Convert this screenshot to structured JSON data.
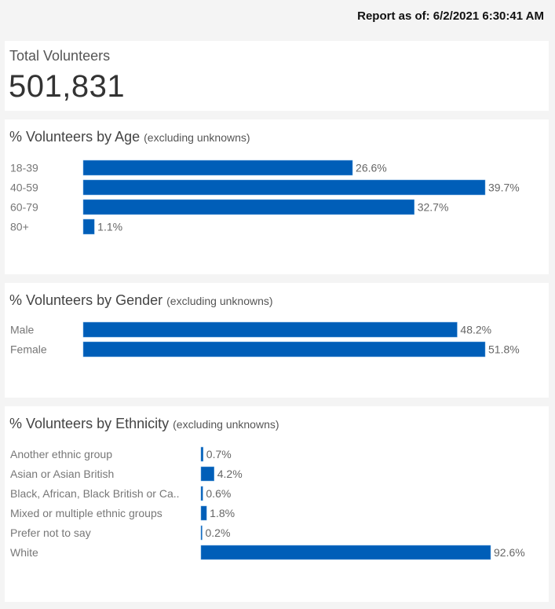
{
  "header": {
    "report_date": "Report as of: 6/2/2021 6:30:41 AM"
  },
  "total": {
    "label": "Total Volunteers",
    "value": "501,831"
  },
  "colors": {
    "bar": "#005eb8",
    "background": "#f4f4f4",
    "panel": "#ffffff"
  },
  "chart_data": [
    {
      "type": "bar",
      "orientation": "horizontal",
      "title": "% Volunteers by Age",
      "subtitle": "(excluding unknowns)",
      "categories": [
        "18-39",
        "40-59",
        "60-79",
        "80+"
      ],
      "values": [
        26.6,
        39.7,
        32.7,
        1.1
      ],
      "labels": [
        "26.6%",
        "39.7%",
        "32.7%",
        "1.1%"
      ],
      "xlabel": "",
      "ylabel": "",
      "grid": false
    },
    {
      "type": "bar",
      "orientation": "horizontal",
      "title": "% Volunteers by Gender",
      "subtitle": "(excluding unknowns)",
      "categories": [
        "Male",
        "Female"
      ],
      "values": [
        48.2,
        51.8
      ],
      "labels": [
        "48.2%",
        "51.8%"
      ],
      "xlabel": "",
      "ylabel": "",
      "grid": false
    },
    {
      "type": "bar",
      "orientation": "horizontal",
      "title": "% Volunteers by Ethnicity",
      "subtitle": "(excluding unknowns)",
      "categories": [
        "Another ethnic group",
        "Asian or Asian British",
        "Black, African, Black British or Ca..",
        "Mixed or multiple ethnic groups",
        "Prefer not to say",
        "White"
      ],
      "values": [
        0.7,
        4.2,
        0.6,
        1.8,
        0.2,
        92.6
      ],
      "labels": [
        "0.7%",
        "4.2%",
        "0.6%",
        "1.8%",
        "0.2%",
        "92.6%"
      ],
      "xlabel": "",
      "ylabel": "",
      "grid": false
    }
  ]
}
